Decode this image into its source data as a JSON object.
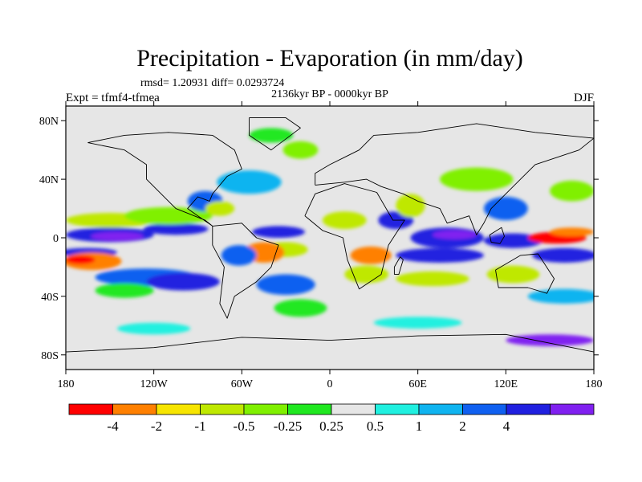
{
  "title": "Precipitation - Evaporation (in mm/day)",
  "stats": "rmsd= 1.20931 diff= 0.0293724",
  "period": "2136kyr BP - 0000kyr BP",
  "expt": "Expt = tfmf4-tfmea",
  "season": "DJF",
  "colors": {
    "background_field": "#e6e6e6",
    "frame": "#000000"
  },
  "map": {
    "projection": "cylindrical-equidistant",
    "lon_range": [
      -180,
      180
    ],
    "lat_range": [
      -90,
      90
    ],
    "lat_ticks": [
      {
        "lat": 80,
        "label": "80N"
      },
      {
        "lat": 40,
        "label": "40N"
      },
      {
        "lat": 0,
        "label": "0"
      },
      {
        "lat": -40,
        "label": "40S"
      },
      {
        "lat": -80,
        "label": "80S"
      }
    ],
    "lon_ticks": [
      {
        "lon": -180,
        "label": "180"
      },
      {
        "lon": -120,
        "label": "120W"
      },
      {
        "lon": -60,
        "label": "60W"
      },
      {
        "lon": 0,
        "label": "0"
      },
      {
        "lon": 60,
        "label": "60E"
      },
      {
        "lon": 120,
        "label": "120E"
      },
      {
        "lon": 180,
        "label": "180"
      }
    ]
  },
  "colorbar": {
    "colors": [
      "#ff0000",
      "#ff8000",
      "#f7e500",
      "#bfe800",
      "#80f000",
      "#20e820",
      "#e6e6e6",
      "#20f0e0",
      "#10b4f0",
      "#1060f0",
      "#2020e0",
      "#8020f0"
    ],
    "labels": [
      "-4",
      "-2",
      "-1",
      "-0.5",
      "-0.25",
      "0.25",
      "0.5",
      "1",
      "2",
      "4"
    ],
    "label_after_index": [
      1,
      2,
      3,
      4,
      5,
      6,
      7,
      8,
      9,
      10
    ]
  },
  "regions": [
    {
      "name": "itcz-pacific",
      "lon": -150,
      "lat": 2,
      "rx": 30,
      "ry": 5,
      "cat": 10
    },
    {
      "name": "itcz-pacific-2",
      "lon": -105,
      "lat": 6,
      "rx": 22,
      "ry": 4,
      "cat": 10
    },
    {
      "name": "itcz-pacific-core",
      "lon": -145,
      "lat": 1,
      "rx": 18,
      "ry": 3,
      "cat": 11
    },
    {
      "name": "spcz-east",
      "lon": -165,
      "lat": -10,
      "rx": 20,
      "ry": 3,
      "cat": 10
    },
    {
      "name": "se-pacific-dry",
      "lon": -162,
      "lat": -16,
      "rx": 20,
      "ry": 6,
      "cat": 1
    },
    {
      "name": "se-pacific-dry-core",
      "lon": -170,
      "lat": -15,
      "rx": 10,
      "ry": 3,
      "cat": 0
    },
    {
      "name": "south-pacific-band",
      "lon": -125,
      "lat": -27,
      "rx": 35,
      "ry": 6,
      "cat": 9
    },
    {
      "name": "south-pacific-band-2",
      "lon": -100,
      "lat": -30,
      "rx": 25,
      "ry": 6,
      "cat": 10
    },
    {
      "name": "south-pacific-green",
      "lon": -140,
      "lat": -36,
      "rx": 20,
      "ry": 5,
      "cat": 5
    },
    {
      "name": "n-pacific-dry",
      "lon": -150,
      "lat": 12,
      "rx": 30,
      "ry": 5,
      "cat": 3
    },
    {
      "name": "n-pacific-green",
      "lon": -110,
      "lat": 15,
      "rx": 30,
      "ry": 6,
      "cat": 4
    },
    {
      "name": "gulf-mexico",
      "lon": -85,
      "lat": 25,
      "rx": 12,
      "ry": 7,
      "cat": 9
    },
    {
      "name": "caribbean-dry",
      "lon": -75,
      "lat": 20,
      "rx": 10,
      "ry": 5,
      "cat": 3
    },
    {
      "name": "atlantic-storm",
      "lon": -55,
      "lat": 38,
      "rx": 22,
      "ry": 8,
      "cat": 8
    },
    {
      "name": "atlantic-itcz",
      "lon": -35,
      "lat": 4,
      "rx": 18,
      "ry": 4,
      "cat": 10
    },
    {
      "name": "atlantic-dry",
      "lon": -30,
      "lat": -8,
      "rx": 15,
      "ry": 5,
      "cat": 3
    },
    {
      "name": "brazil-dry",
      "lon": -45,
      "lat": -10,
      "rx": 14,
      "ry": 7,
      "cat": 1
    },
    {
      "name": "south-america-wet",
      "lon": -62,
      "lat": -12,
      "rx": 12,
      "ry": 7,
      "cat": 9
    },
    {
      "name": "sacz",
      "lon": -30,
      "lat": -32,
      "rx": 20,
      "ry": 7,
      "cat": 9
    },
    {
      "name": "s-atlantic-green",
      "lon": -20,
      "lat": -48,
      "rx": 18,
      "ry": 6,
      "cat": 5
    },
    {
      "name": "n-africa-dry",
      "lon": 10,
      "lat": 12,
      "rx": 15,
      "ry": 6,
      "cat": 3
    },
    {
      "name": "east-africa-wet",
      "lon": 45,
      "lat": 12,
      "rx": 12,
      "ry": 6,
      "cat": 10
    },
    {
      "name": "africa-south-dry",
      "lon": 28,
      "lat": -12,
      "rx": 14,
      "ry": 6,
      "cat": 1
    },
    {
      "name": "africa-south-yellow",
      "lon": 25,
      "lat": -25,
      "rx": 15,
      "ry": 6,
      "cat": 3
    },
    {
      "name": "indian-ocean-wet",
      "lon": 80,
      "lat": 0,
      "rx": 25,
      "ry": 7,
      "cat": 10
    },
    {
      "name": "indian-ocean-core",
      "lon": 85,
      "lat": 2,
      "rx": 15,
      "ry": 3,
      "cat": 11
    },
    {
      "name": "south-indian-band",
      "lon": 75,
      "lat": -12,
      "rx": 30,
      "ry": 5,
      "cat": 10
    },
    {
      "name": "south-indian-dry",
      "lon": 70,
      "lat": -28,
      "rx": 25,
      "ry": 5,
      "cat": 3
    },
    {
      "name": "arabia-dry",
      "lon": 55,
      "lat": 22,
      "rx": 10,
      "ry": 8,
      "cat": 3
    },
    {
      "name": "asia-green",
      "lon": 100,
      "lat": 40,
      "rx": 25,
      "ry": 8,
      "cat": 4
    },
    {
      "name": "east-asia-wet",
      "lon": 120,
      "lat": 20,
      "rx": 15,
      "ry": 8,
      "cat": 9
    },
    {
      "name": "maritime-wet",
      "lon": 125,
      "lat": -2,
      "rx": 20,
      "ry": 5,
      "cat": 10
    },
    {
      "name": "w-pacific-dry",
      "lon": 155,
      "lat": 0,
      "rx": 20,
      "ry": 4,
      "cat": 0
    },
    {
      "name": "w-pacific-dry-2",
      "lon": 165,
      "lat": 4,
      "rx": 15,
      "ry": 3,
      "cat": 1
    },
    {
      "name": "w-pacific-wet",
      "lon": 160,
      "lat": -12,
      "rx": 22,
      "ry": 5,
      "cat": 10
    },
    {
      "name": "nw-pacific-green",
      "lon": 165,
      "lat": 32,
      "rx": 15,
      "ry": 7,
      "cat": 4
    },
    {
      "name": "australia-yellow",
      "lon": 125,
      "lat": -25,
      "rx": 18,
      "ry": 6,
      "cat": 3
    },
    {
      "name": "southern-ocean-blue",
      "lon": 160,
      "lat": -40,
      "rx": 25,
      "ry": 5,
      "cat": 8
    },
    {
      "name": "southern-ocean-cyan-1",
      "lon": -120,
      "lat": -62,
      "rx": 25,
      "ry": 4,
      "cat": 7
    },
    {
      "name": "southern-ocean-cyan-2",
      "lon": 60,
      "lat": -58,
      "rx": 30,
      "ry": 4,
      "cat": 7
    },
    {
      "name": "antarctic-purple",
      "lon": 150,
      "lat": -70,
      "rx": 30,
      "ry": 4,
      "cat": 11
    },
    {
      "name": "north-atlantic-green",
      "lon": -20,
      "lat": 60,
      "rx": 12,
      "ry": 6,
      "cat": 4
    },
    {
      "name": "arctic-green",
      "lon": -40,
      "lat": 70,
      "rx": 15,
      "ry": 5,
      "cat": 5
    }
  ],
  "land": [
    {
      "name": "north-america",
      "coords": [
        [
          -165,
          65
        ],
        [
          -140,
          70
        ],
        [
          -110,
          72
        ],
        [
          -80,
          70
        ],
        [
          -65,
          60
        ],
        [
          -60,
          47
        ],
        [
          -70,
          42
        ],
        [
          -80,
          30
        ],
        [
          -82,
          25
        ],
        [
          -90,
          28
        ],
        [
          -97,
          20
        ],
        [
          -90,
          15
        ],
        [
          -80,
          8
        ],
        [
          -85,
          12
        ],
        [
          -105,
          20
        ],
        [
          -115,
          30
        ],
        [
          -125,
          40
        ],
        [
          -125,
          50
        ],
        [
          -140,
          60
        ],
        [
          -165,
          65
        ]
      ]
    },
    {
      "name": "greenland",
      "coords": [
        [
          -55,
          82
        ],
        [
          -30,
          82
        ],
        [
          -20,
          75
        ],
        [
          -40,
          60
        ],
        [
          -55,
          70
        ],
        [
          -55,
          82
        ]
      ]
    },
    {
      "name": "south-america",
      "coords": [
        [
          -80,
          8
        ],
        [
          -60,
          10
        ],
        [
          -50,
          0
        ],
        [
          -35,
          -5
        ],
        [
          -40,
          -20
        ],
        [
          -50,
          -30
        ],
        [
          -65,
          -40
        ],
        [
          -70,
          -55
        ],
        [
          -75,
          -45
        ],
        [
          -72,
          -20
        ],
        [
          -80,
          -5
        ],
        [
          -80,
          8
        ]
      ]
    },
    {
      "name": "africa",
      "coords": [
        [
          -17,
          15
        ],
        [
          -10,
          30
        ],
        [
          10,
          37
        ],
        [
          32,
          31
        ],
        [
          43,
          12
        ],
        [
          51,
          12
        ],
        [
          40,
          -5
        ],
        [
          35,
          -25
        ],
        [
          20,
          -35
        ],
        [
          12,
          -15
        ],
        [
          9,
          0
        ],
        [
          -5,
          5
        ],
        [
          -17,
          15
        ]
      ]
    },
    {
      "name": "eurasia",
      "coords": [
        [
          -10,
          36
        ],
        [
          -10,
          44
        ],
        [
          0,
          50
        ],
        [
          10,
          55
        ],
        [
          20,
          60
        ],
        [
          30,
          70
        ],
        [
          60,
          72
        ],
        [
          100,
          78
        ],
        [
          140,
          72
        ],
        [
          180,
          68
        ],
        [
          170,
          60
        ],
        [
          140,
          50
        ],
        [
          130,
          40
        ],
        [
          120,
          30
        ],
        [
          110,
          20
        ],
        [
          105,
          10
        ],
        [
          100,
          2
        ],
        [
          95,
          15
        ],
        [
          80,
          10
        ],
        [
          75,
          20
        ],
        [
          60,
          25
        ],
        [
          50,
          30
        ],
        [
          35,
          35
        ],
        [
          25,
          40
        ],
        [
          10,
          38
        ],
        [
          -10,
          36
        ]
      ]
    },
    {
      "name": "australia",
      "coords": [
        [
          113,
          -22
        ],
        [
          130,
          -12
        ],
        [
          142,
          -11
        ],
        [
          153,
          -28
        ],
        [
          148,
          -38
        ],
        [
          135,
          -34
        ],
        [
          115,
          -34
        ],
        [
          113,
          -22
        ]
      ]
    },
    {
      "name": "antarctica",
      "coords": [
        [
          -180,
          -78
        ],
        [
          -120,
          -75
        ],
        [
          -60,
          -68
        ],
        [
          0,
          -70
        ],
        [
          60,
          -67
        ],
        [
          120,
          -66
        ],
        [
          180,
          -78
        ]
      ]
    },
    {
      "name": "borneo",
      "coords": [
        [
          109,
          2
        ],
        [
          117,
          7
        ],
        [
          119,
          1
        ],
        [
          116,
          -4
        ],
        [
          110,
          -3
        ],
        [
          109,
          2
        ]
      ]
    },
    {
      "name": "madagascar",
      "coords": [
        [
          44,
          -25
        ],
        [
          47,
          -25
        ],
        [
          50,
          -15
        ],
        [
          48,
          -13
        ],
        [
          44,
          -20
        ],
        [
          44,
          -25
        ]
      ]
    }
  ]
}
